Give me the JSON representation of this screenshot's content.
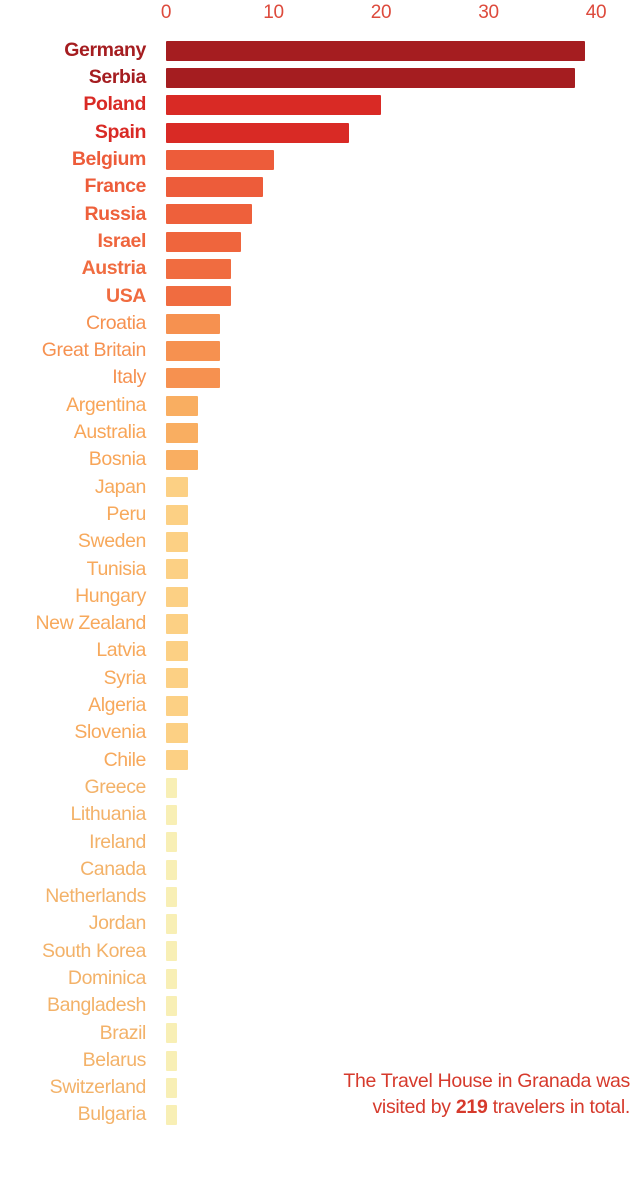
{
  "chart_data": {
    "type": "bar",
    "orientation": "horizontal",
    "title": "",
    "xlabel": "",
    "ylabel": "",
    "xlim": [
      0,
      40
    ],
    "x_ticks": [
      0,
      10,
      20,
      30,
      40
    ],
    "grid": false,
    "legend": false,
    "axis_position": "top",
    "tick_color": "#dd4a3c",
    "total": 219,
    "categories": [
      "Germany",
      "Serbia",
      "Poland",
      "Spain",
      "Belgium",
      "France",
      "Russia",
      "Israel",
      "Austria",
      "USA",
      "Croatia",
      "Great Britain",
      "Italy",
      "Argentina",
      "Australia",
      "Bosnia",
      "Japan",
      "Peru",
      "Sweden",
      "Tunisia",
      "Hungary",
      "New Zealand",
      "Latvia",
      "Syria",
      "Algeria",
      "Slovenia",
      "Chile",
      "Greece",
      "Lithuania",
      "Ireland",
      "Canada",
      "Netherlands",
      "Jordan",
      "South Korea",
      "Dominica",
      "Bangladesh",
      "Brazil",
      "Belarus",
      "Switzerland",
      "Bulgaria"
    ],
    "values": [
      39,
      38,
      20,
      17,
      10,
      9,
      8,
      7,
      6,
      6,
      5,
      5,
      5,
      3,
      3,
      3,
      2,
      2,
      2,
      2,
      2,
      2,
      2,
      2,
      2,
      2,
      2,
      1,
      1,
      1,
      1,
      1,
      1,
      1,
      1,
      1,
      1,
      1,
      1,
      1
    ],
    "rows": [
      {
        "label": "Germany",
        "value": 39,
        "bar_color": "#a51d20",
        "label_color": "#a51d20",
        "bold": true
      },
      {
        "label": "Serbia",
        "value": 38,
        "bar_color": "#a51d20",
        "label_color": "#a51d20",
        "bold": true
      },
      {
        "label": "Poland",
        "value": 20,
        "bar_color": "#d92a25",
        "label_color": "#d92a25",
        "bold": true
      },
      {
        "label": "Spain",
        "value": 17,
        "bar_color": "#d92a25",
        "label_color": "#d92a25",
        "bold": true
      },
      {
        "label": "Belgium",
        "value": 10,
        "bar_color": "#ed5c3a",
        "label_color": "#ed5c3a",
        "bold": true
      },
      {
        "label": "France",
        "value": 9,
        "bar_color": "#ed5c3a",
        "label_color": "#ed5c3a",
        "bold": true
      },
      {
        "label": "Russia",
        "value": 8,
        "bar_color": "#ee603b",
        "label_color": "#ee603b",
        "bold": true
      },
      {
        "label": "Israel",
        "value": 7,
        "bar_color": "#ef653d",
        "label_color": "#ef653d",
        "bold": true
      },
      {
        "label": "Austria",
        "value": 6,
        "bar_color": "#f06c40",
        "label_color": "#f06c40",
        "bold": true
      },
      {
        "label": "USA",
        "value": 6,
        "bar_color": "#f06c40",
        "label_color": "#f06c40",
        "bold": true
      },
      {
        "label": "Croatia",
        "value": 5,
        "bar_color": "#f69150",
        "label_color": "#f69150",
        "bold": false
      },
      {
        "label": "Great Britain",
        "value": 5,
        "bar_color": "#f69150",
        "label_color": "#f69150",
        "bold": false
      },
      {
        "label": "Italy",
        "value": 5,
        "bar_color": "#f69150",
        "label_color": "#f69150",
        "bold": false
      },
      {
        "label": "Argentina",
        "value": 3,
        "bar_color": "#f9ae61",
        "label_color": "#f8a558",
        "bold": false
      },
      {
        "label": "Australia",
        "value": 3,
        "bar_color": "#f9ae61",
        "label_color": "#f8a558",
        "bold": false
      },
      {
        "label": "Bosnia",
        "value": 3,
        "bar_color": "#f9ae61",
        "label_color": "#f8a558",
        "bold": false
      },
      {
        "label": "Japan",
        "value": 2,
        "bar_color": "#fcd084",
        "label_color": "#f7a95c",
        "bold": false
      },
      {
        "label": "Peru",
        "value": 2,
        "bar_color": "#fcd084",
        "label_color": "#f7a95c",
        "bold": false
      },
      {
        "label": "Sweden",
        "value": 2,
        "bar_color": "#fcd084",
        "label_color": "#f7a95c",
        "bold": false
      },
      {
        "label": "Tunisia",
        "value": 2,
        "bar_color": "#fcd084",
        "label_color": "#f7a95c",
        "bold": false
      },
      {
        "label": "Hungary",
        "value": 2,
        "bar_color": "#fcd084",
        "label_color": "#f7a95c",
        "bold": false
      },
      {
        "label": "New Zealand",
        "value": 2,
        "bar_color": "#fcd084",
        "label_color": "#f7a95c",
        "bold": false
      },
      {
        "label": "Latvia",
        "value": 2,
        "bar_color": "#fcd084",
        "label_color": "#f7a95c",
        "bold": false
      },
      {
        "label": "Syria",
        "value": 2,
        "bar_color": "#fcd084",
        "label_color": "#f7a95c",
        "bold": false
      },
      {
        "label": "Algeria",
        "value": 2,
        "bar_color": "#fcd084",
        "label_color": "#f7a95c",
        "bold": false
      },
      {
        "label": "Slovenia",
        "value": 2,
        "bar_color": "#fcd084",
        "label_color": "#f7a95c",
        "bold": false
      },
      {
        "label": "Chile",
        "value": 2,
        "bar_color": "#fcd084",
        "label_color": "#f7a95c",
        "bold": false
      },
      {
        "label": "Greece",
        "value": 1,
        "bar_color": "#f8efb5",
        "label_color": "#f3b269",
        "bold": false
      },
      {
        "label": "Lithuania",
        "value": 1,
        "bar_color": "#f8efb5",
        "label_color": "#f3b269",
        "bold": false
      },
      {
        "label": "Ireland",
        "value": 1,
        "bar_color": "#f8efb5",
        "label_color": "#f3b269",
        "bold": false
      },
      {
        "label": "Canada",
        "value": 1,
        "bar_color": "#f8efb5",
        "label_color": "#f3b269",
        "bold": false
      },
      {
        "label": "Netherlands",
        "value": 1,
        "bar_color": "#f8efb5",
        "label_color": "#f3b269",
        "bold": false
      },
      {
        "label": "Jordan",
        "value": 1,
        "bar_color": "#f8efb5",
        "label_color": "#f3b269",
        "bold": false
      },
      {
        "label": "South Korea",
        "value": 1,
        "bar_color": "#f8efb5",
        "label_color": "#f3b269",
        "bold": false
      },
      {
        "label": "Dominica",
        "value": 1,
        "bar_color": "#f8efb5",
        "label_color": "#f3b269",
        "bold": false
      },
      {
        "label": "Bangladesh",
        "value": 1,
        "bar_color": "#f8efb5",
        "label_color": "#f3b269",
        "bold": false
      },
      {
        "label": "Brazil",
        "value": 1,
        "bar_color": "#f8efb5",
        "label_color": "#f3b269",
        "bold": false
      },
      {
        "label": "Belarus",
        "value": 1,
        "bar_color": "#f8efb5",
        "label_color": "#f3b269",
        "bold": false
      },
      {
        "label": "Switzerland",
        "value": 1,
        "bar_color": "#f8efb5",
        "label_color": "#f3b269",
        "bold": false
      },
      {
        "label": "Bulgaria",
        "value": 1,
        "bar_color": "#f8efb5",
        "label_color": "#f3b269",
        "bold": false
      }
    ]
  },
  "annotation": {
    "line1": "The Travel House in Granada was",
    "line2_prefix": "visited by ",
    "total": "219",
    "line2_suffix": " travelers in total.",
    "color": "#d63a2c"
  }
}
